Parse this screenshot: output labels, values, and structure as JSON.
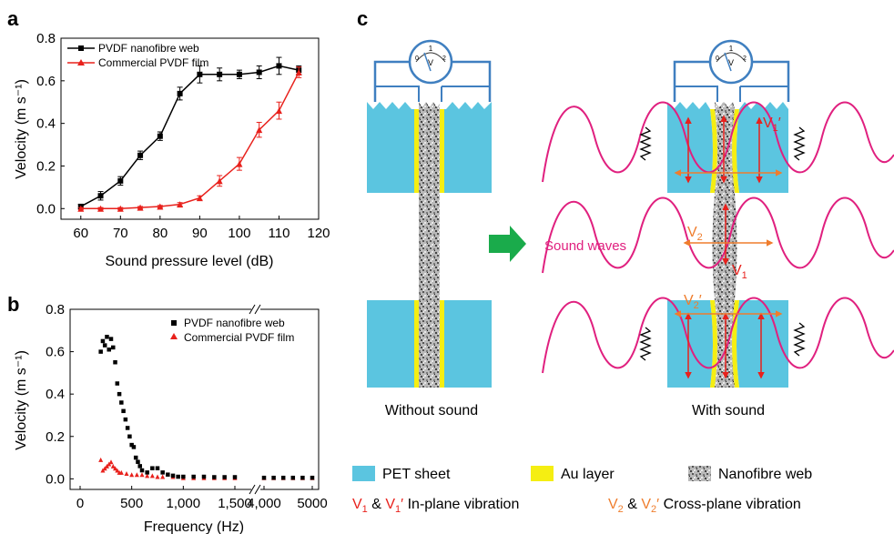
{
  "panels": {
    "a": "a",
    "b": "b",
    "c": "c"
  },
  "colors": {
    "black_series": "#000000",
    "red_series": "#e8211c",
    "pet": "#5bc5e0",
    "au": "#f5ee12",
    "wave": "#e0207f",
    "arrow_red": "#e8211c",
    "arrow_orange": "#ef7d2d",
    "wire": "#3f7fc0",
    "green_arrow": "#1aab4b"
  },
  "chart_data": [
    {
      "type": "line",
      "panel": "a",
      "xlabel": "Sound pressure level (dB)",
      "ylabel": "Velocity (m s⁻¹)",
      "xlim": [
        55,
        120
      ],
      "ylim": [
        -0.05,
        0.8
      ],
      "xticks": [
        "60",
        "70",
        "80",
        "90",
        "100",
        "110",
        "120"
      ],
      "yticks": [
        "0.0",
        "0.2",
        "0.4",
        "0.6",
        "0.8"
      ],
      "legend": "top-left",
      "series": [
        {
          "name": "PVDF nanofibre web",
          "color": "#000000",
          "marker": "square",
          "x": [
            60,
            65,
            70,
            75,
            80,
            85,
            90,
            95,
            100,
            105,
            110,
            115
          ],
          "y": [
            0.01,
            0.06,
            0.13,
            0.25,
            0.34,
            0.54,
            0.63,
            0.63,
            0.63,
            0.64,
            0.67,
            0.65
          ],
          "err": [
            0.01,
            0.02,
            0.02,
            0.02,
            0.02,
            0.03,
            0.04,
            0.03,
            0.02,
            0.03,
            0.04,
            0.02
          ]
        },
        {
          "name": "Commercial PVDF film",
          "color": "#e8211c",
          "marker": "triangle",
          "x": [
            60,
            65,
            70,
            75,
            80,
            85,
            90,
            95,
            100,
            105,
            110,
            115
          ],
          "y": [
            0.0,
            0.0,
            0.0,
            0.005,
            0.01,
            0.02,
            0.05,
            0.13,
            0.21,
            0.37,
            0.46,
            0.64
          ],
          "err": [
            0.005,
            0.005,
            0.005,
            0.005,
            0.005,
            0.008,
            0.01,
            0.025,
            0.03,
            0.035,
            0.04,
            0.025
          ]
        }
      ]
    },
    {
      "type": "scatter",
      "panel": "b",
      "xlabel": "Frequency (Hz)",
      "ylabel": "Velocity (m s⁻¹)",
      "ylim": [
        -0.05,
        0.8
      ],
      "axis_break": "between 1,500 and 4,000",
      "xticks": [
        "0",
        "500",
        "1,000",
        "1,500",
        "4,000",
        "5000"
      ],
      "yticks": [
        "0.0",
        "0.2",
        "0.4",
        "0.6",
        "0.8"
      ],
      "legend": "top-right",
      "series": [
        {
          "name": "PVDF nanofibre web",
          "color": "#000000",
          "marker": "square",
          "x": [
            200,
            220,
            240,
            260,
            280,
            300,
            320,
            340,
            360,
            380,
            400,
            420,
            440,
            460,
            480,
            500,
            520,
            540,
            560,
            580,
            600,
            650,
            700,
            750,
            800,
            850,
            900,
            950,
            1000,
            1100,
            1200,
            1300,
            1400,
            1500,
            4000,
            4200,
            4400,
            4600,
            4800,
            5000
          ],
          "y": [
            0.6,
            0.65,
            0.63,
            0.67,
            0.61,
            0.66,
            0.62,
            0.55,
            0.45,
            0.4,
            0.36,
            0.32,
            0.28,
            0.24,
            0.2,
            0.16,
            0.15,
            0.1,
            0.08,
            0.06,
            0.04,
            0.03,
            0.05,
            0.05,
            0.03,
            0.02,
            0.015,
            0.01,
            0.01,
            0.01,
            0.01,
            0.008,
            0.008,
            0.008,
            0.005,
            0.005,
            0.005,
            0.005,
            0.005,
            0.005
          ]
        },
        {
          "name": "Commercial PVDF film",
          "color": "#e8211c",
          "marker": "triangle",
          "x": [
            200,
            220,
            240,
            260,
            280,
            300,
            320,
            340,
            360,
            380,
            400,
            450,
            500,
            550,
            600,
            650,
            700,
            750,
            800,
            900,
            1000,
            1100,
            1200,
            1300,
            1400,
            1500,
            4000,
            4200,
            4400,
            4600,
            4800,
            5000
          ],
          "y": [
            0.09,
            0.04,
            0.05,
            0.06,
            0.07,
            0.08,
            0.06,
            0.05,
            0.04,
            0.03,
            0.03,
            0.025,
            0.02,
            0.02,
            0.02,
            0.015,
            0.015,
            0.01,
            0.01,
            0.01,
            0.005,
            0.005,
            0.005,
            0.005,
            0.005,
            0.005,
            0.005,
            0.005,
            0.005,
            0.005,
            0.005,
            0.005
          ]
        }
      ]
    }
  ],
  "diagram": {
    "meter_label": "V",
    "meter_scale": [
      "0",
      "1",
      "2"
    ],
    "labels": {
      "sound_waves": "Sound waves",
      "v1": "V",
      "v1_sub": "1",
      "v1_prime": "V",
      "v1_prime_sub": "1",
      "v2": "V",
      "v2_sub": "2",
      "v2_prime": "V",
      "v2_prime_sub": "2",
      "prime": "′"
    },
    "captions": {
      "without": "Without sound",
      "with": "With sound"
    }
  },
  "legend_c": {
    "pet": "PET sheet",
    "au": "Au layer",
    "nano": "Nanofibre web",
    "v1_text": "V",
    "v1_sub": "1",
    "amp": " & ",
    "v1p_text": "V",
    "v1p_sub": "1",
    "prime": "′",
    "inplane": " In-plane vibration",
    "v2_text": "V",
    "v2_sub": "2",
    "v2p_text": "V",
    "v2p_sub": "2",
    "crossplane": " Cross-plane vibration"
  }
}
